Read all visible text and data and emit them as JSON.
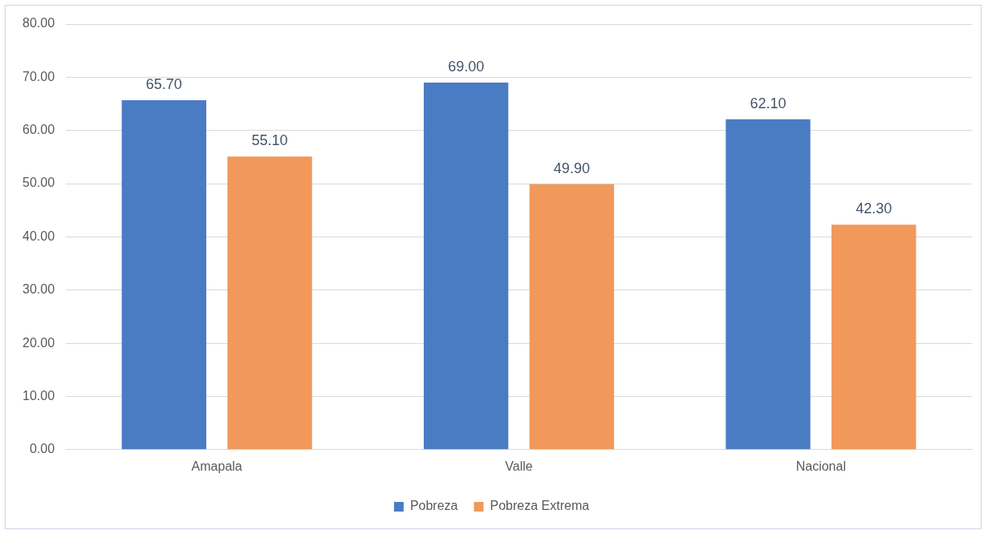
{
  "chart_data": {
    "type": "bar",
    "categories": [
      "Amapala",
      "Valle",
      "Nacional"
    ],
    "series": [
      {
        "name": "Pobreza",
        "color": "#4a7cc4",
        "values": [
          65.7,
          69.0,
          62.1
        ],
        "value_labels": [
          "65.70",
          "69.00",
          "62.10"
        ]
      },
      {
        "name": "Pobreza Extrema",
        "color": "#f0995a",
        "values": [
          55.1,
          49.9,
          42.3
        ],
        "value_labels": [
          "55.10",
          "49.90",
          "42.30"
        ]
      }
    ],
    "ylim": [
      0,
      80
    ],
    "yticks": [
      {
        "value": 0,
        "label": "0.00"
      },
      {
        "value": 10,
        "label": "10.00"
      },
      {
        "value": 20,
        "label": "20.00"
      },
      {
        "value": 30,
        "label": "30.00"
      },
      {
        "value": 40,
        "label": "40.00"
      },
      {
        "value": 50,
        "label": "50.00"
      },
      {
        "value": 60,
        "label": "60.00"
      },
      {
        "value": 70,
        "label": "70.00"
      },
      {
        "value": 80,
        "label": "80.00"
      }
    ],
    "grid": "y",
    "legend": "bottom"
  }
}
